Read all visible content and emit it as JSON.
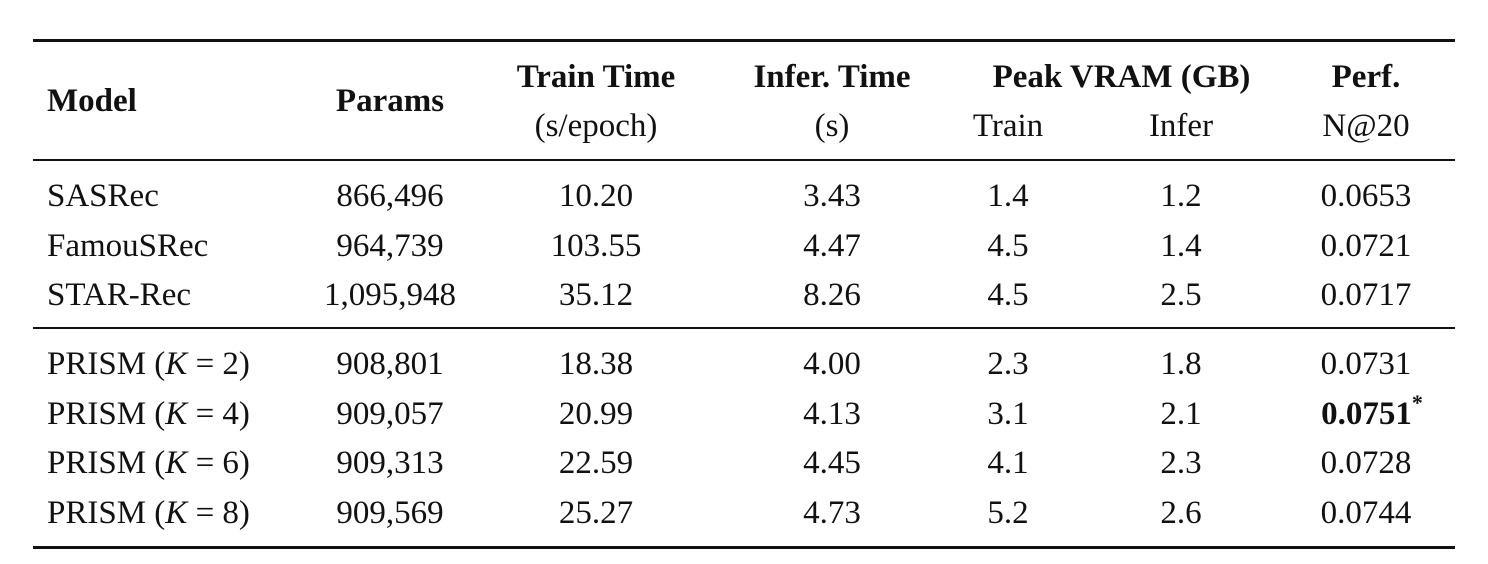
{
  "table": {
    "header": {
      "model": "Model",
      "params": "Params",
      "train_time": {
        "title": "Train Time",
        "unit": "(s/epoch)"
      },
      "infer_time": {
        "title": "Infer. Time",
        "unit": "(s)"
      },
      "peak_vram": {
        "title": "Peak VRAM (GB)",
        "sub": [
          "Train",
          "Infer"
        ]
      },
      "perf": {
        "title": "Perf.",
        "metric": "N@20"
      }
    },
    "groups": [
      {
        "rows": [
          [
            "SASRec",
            "866,496",
            "10.20",
            "3.43",
            "1.4",
            "1.2",
            "0.0653"
          ],
          [
            "FamouSRec",
            "964,739",
            "103.55",
            "4.47",
            "4.5",
            "1.4",
            "0.0721"
          ],
          [
            "STAR-Rec",
            "1,095,948",
            "35.12",
            "8.26",
            "4.5",
            "2.5",
            "0.0717"
          ]
        ]
      },
      {
        "rows": [
          [
            "PRISM (K = 2)",
            "908,801",
            "18.38",
            "4.00",
            "2.3",
            "1.8",
            "0.0731"
          ],
          [
            "PRISM (K = 4)",
            "909,057",
            "20.99",
            "4.13",
            "3.1",
            "2.1",
            {
              "text": "0.0751",
              "sup": "*",
              "bold": true
            }
          ],
          [
            "PRISM (K = 6)",
            "909,313",
            "22.59",
            "4.45",
            "4.1",
            "2.3",
            "0.0728"
          ],
          [
            "PRISM (K = 8)",
            "909,569",
            "25.27",
            "4.73",
            "5.2",
            "2.6",
            "0.0744"
          ]
        ]
      }
    ]
  }
}
